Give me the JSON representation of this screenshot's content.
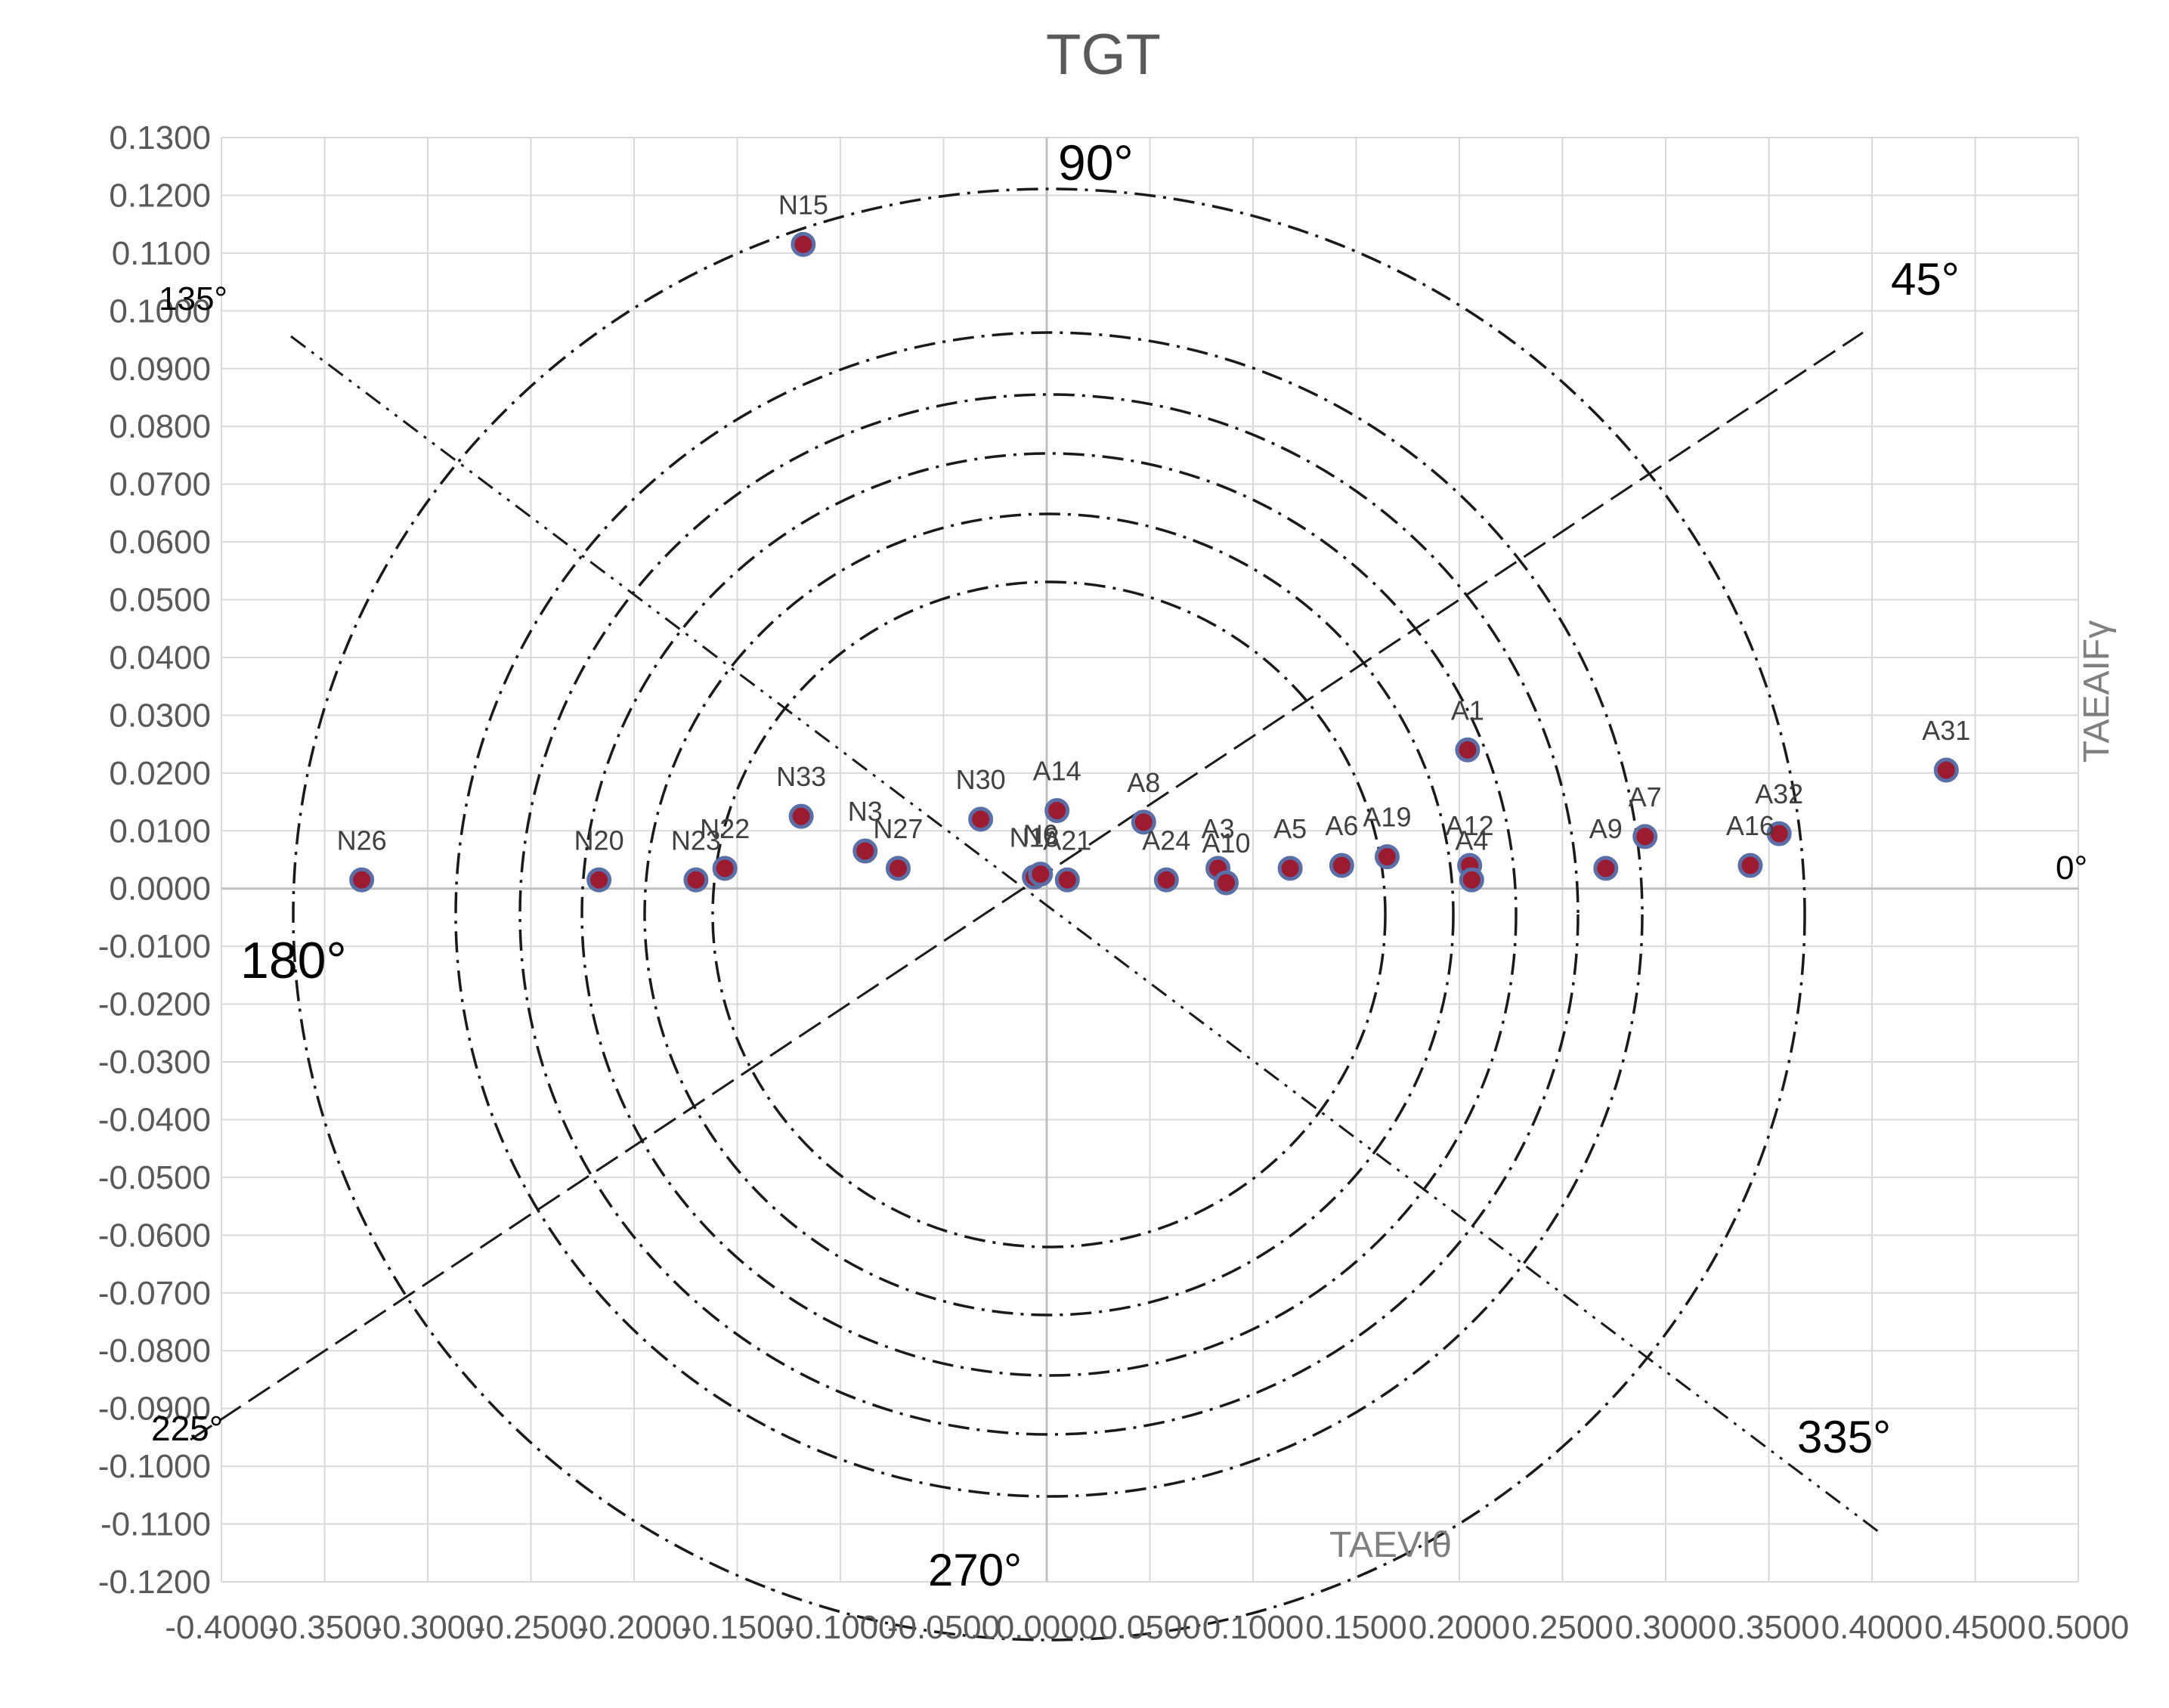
{
  "chart_data": {
    "type": "scatter",
    "title": "TGT",
    "xlabel": "TAEVIθ",
    "ylabel": "TAEAIFγ",
    "xlim": [
      -0.4,
      0.5
    ],
    "ylim": [
      -0.12,
      0.13
    ],
    "x_ticks": [
      "-0.4000",
      "-0.3500",
      "-0.3000",
      "-0.2500",
      "-0.2000",
      "-0.1500",
      "-0.1000",
      "-0.0500",
      "0.0000",
      "0.0500",
      "0.1000",
      "0.1500",
      "0.2000",
      "0.2500",
      "0.3000",
      "0.3500",
      "0.4000",
      "0.4500",
      "0.5000"
    ],
    "y_ticks": [
      "0.1300",
      "0.1200",
      "0.1100",
      "0.1000",
      "0.0900",
      "0.0800",
      "0.0700",
      "0.0600",
      "0.0500",
      "0.0400",
      "0.0300",
      "0.0200",
      "0.0100",
      "0.0000",
      "-0.0100",
      "-0.0200",
      "-0.0300",
      "-0.0400",
      "-0.0500",
      "-0.0600",
      "-0.0700",
      "-0.0800",
      "-0.0900",
      "-0.1000",
      "-0.1100",
      "-0.1200"
    ],
    "grid": true,
    "marker_color": "#9b1c31",
    "marker_edge_color": "#5a6fa8",
    "angle_labels": [
      "0°",
      "45°",
      "90°",
      "135°",
      "180°",
      "225°",
      "270°",
      "335°"
    ],
    "points": [
      {
        "label": "N15",
        "x": -0.118,
        "y": 0.1115
      },
      {
        "label": "N26",
        "x": -0.332,
        "y": 0.0015
      },
      {
        "label": "N20",
        "x": -0.217,
        "y": 0.0015
      },
      {
        "label": "N23",
        "x": -0.17,
        "y": 0.0015
      },
      {
        "label": "N22",
        "x": -0.156,
        "y": 0.0035
      },
      {
        "label": "N33",
        "x": -0.119,
        "y": 0.0125
      },
      {
        "label": "N3",
        "x": -0.088,
        "y": 0.0065
      },
      {
        "label": "N27",
        "x": -0.072,
        "y": 0.0035
      },
      {
        "label": "N30",
        "x": -0.032,
        "y": 0.012
      },
      {
        "label": "A14",
        "x": 0.005,
        "y": 0.0135
      },
      {
        "label": "A8",
        "x": 0.047,
        "y": 0.0115
      },
      {
        "label": "A24",
        "x": 0.058,
        "y": 0.0015
      },
      {
        "label": "A3",
        "x": 0.083,
        "y": 0.0035
      },
      {
        "label": "A10",
        "x": 0.087,
        "y": 0.001
      },
      {
        "label": "A5",
        "x": 0.118,
        "y": 0.0035
      },
      {
        "label": "A6",
        "x": 0.143,
        "y": 0.004
      },
      {
        "label": "A19",
        "x": 0.165,
        "y": 0.0055
      },
      {
        "label": "A1",
        "x": 0.204,
        "y": 0.024
      },
      {
        "label": "A12",
        "x": 0.205,
        "y": 0.004
      },
      {
        "label": "A4",
        "x": 0.206,
        "y": 0.0015
      },
      {
        "label": "A9",
        "x": 0.271,
        "y": 0.0035
      },
      {
        "label": "A7",
        "x": 0.29,
        "y": 0.009
      },
      {
        "label": "A16",
        "x": 0.341,
        "y": 0.004
      },
      {
        "label": "A32",
        "x": 0.355,
        "y": 0.0095
      },
      {
        "label": "A31",
        "x": 0.436,
        "y": 0.0205
      },
      {
        "label": "N18",
        "x": -0.006,
        "y": 0.002
      },
      {
        "label": "N6",
        "x": -0.003,
        "y": 0.0025
      },
      {
        "label": "A21",
        "x": 0.01,
        "y": 0.0015
      }
    ]
  }
}
